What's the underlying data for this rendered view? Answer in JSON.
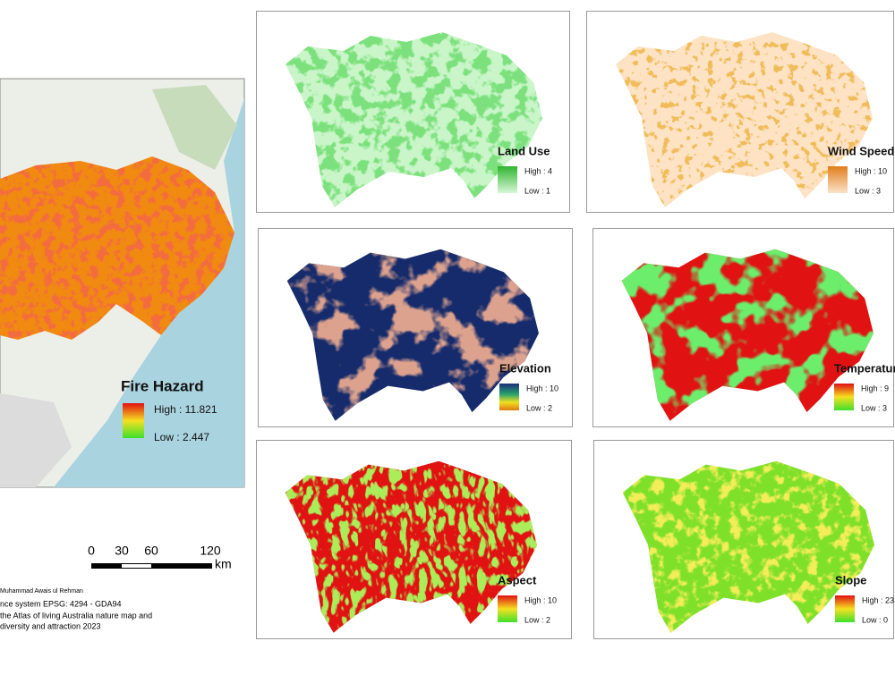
{
  "fire_hazard": {
    "title": "Fire Hazard",
    "high": "High : 11.821",
    "low": "Low : 2.447"
  },
  "panels": [
    {
      "title": "Land Use",
      "high": "High : 4",
      "low": "Low : 1"
    },
    {
      "title": "Wind Speed",
      "high": "High : 10",
      "low": "Low : 3"
    },
    {
      "title": "Elevation",
      "high": "High : 10",
      "low": "Low : 2"
    },
    {
      "title": "Temperatur",
      "high": "High : 9",
      "low": "Low : 3"
    },
    {
      "title": "Aspect",
      "high": "High : 10",
      "low": "Low : 2"
    },
    {
      "title": "Slope",
      "high": "High : 23.",
      "low": "Low : 0"
    }
  ],
  "scale_bar": {
    "labels": [
      "0",
      "30",
      "60",
      "120"
    ],
    "unit": "km"
  },
  "credits": [
    "Muhammad Awais ul Rehman",
    "nce system EPSG: 4294 - GDA94",
    "the Atlas of living Australia nature map and",
    "diversity and attraction 2023"
  ]
}
